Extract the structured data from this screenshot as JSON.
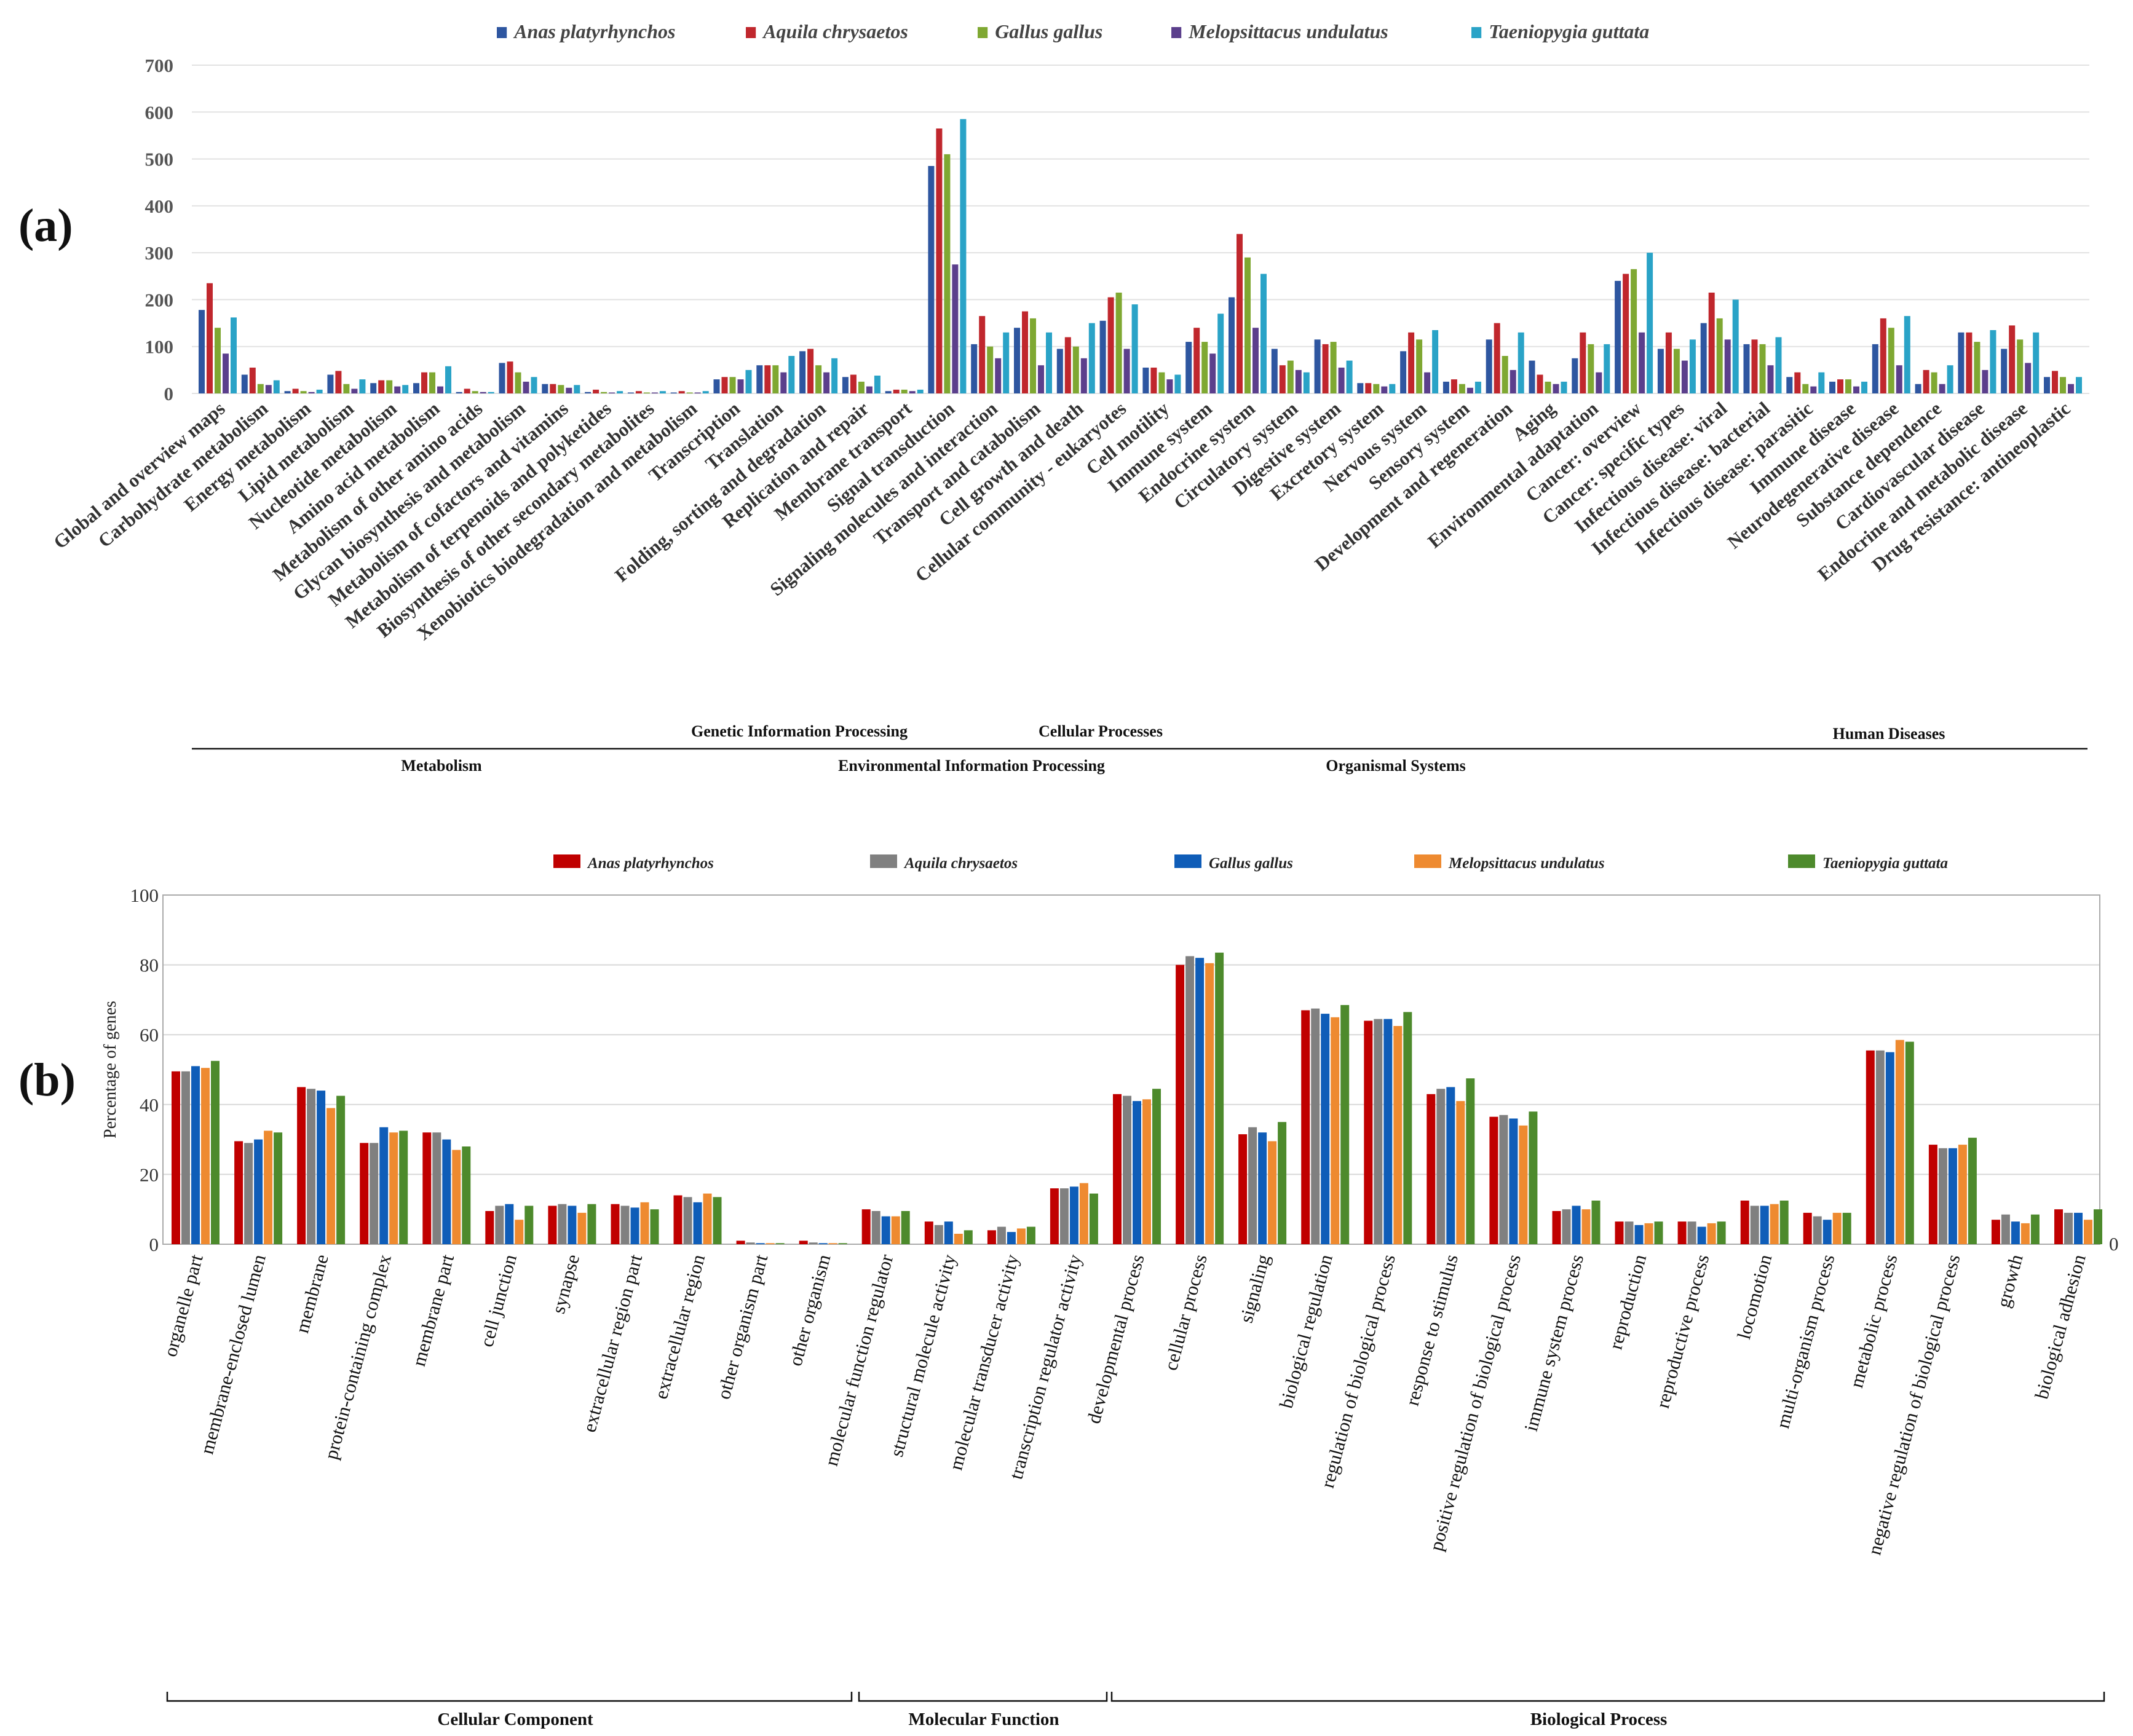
{
  "panels": {
    "a": "(a)",
    "b": "(b)"
  },
  "chart_data": [
    {
      "panel": "(a)",
      "type": "bar",
      "ylim": [
        0,
        700
      ],
      "yticks": [
        0,
        100,
        200,
        300,
        400,
        500,
        600,
        700
      ],
      "grid": true,
      "legend_position": "top",
      "series_colors": [
        "#2e56a0",
        "#c0272d",
        "#7fa832",
        "#5b3f8c",
        "#2aa3c7"
      ],
      "categories": [
        "Global and overview maps",
        "Carbohydrate metabolism",
        "Energy metabolism",
        "Lipid metabolism",
        "Nucleotide metabolism",
        "Amino acid metabolism",
        "Metabolism of other amino acids",
        "Glycan biosynthesis and metabolism",
        "Metabolism of cofactors and vitamins",
        "Metabolism of terpenoids and polyketides",
        "Biosynthesis of other secondary metabolites",
        "Xenobiotics biodegradation and metabolism",
        "Transcription",
        "Translation",
        "Folding, sorting and degradation",
        "Replication and repair",
        "Membrane transport",
        "Signal transduction",
        "Signaling molecules and interaction",
        "Transport and catabolism",
        "Cell growth and death",
        "Cellular community - eukaryotes",
        "Cell motility",
        "Immune system",
        "Endocrine system",
        "Circulatory system",
        "Digestive system",
        "Excretory system",
        "Nervous system",
        "Sensory system",
        "Development and regeneration",
        "Aging",
        "Environmental adaptation",
        "Cancer: overview",
        "Cancer: specific types",
        "Infectious disease: viral",
        "Infectious disease: bacterial",
        "Infectious disease: parasitic",
        "Immune disease",
        "Neurodegenerative disease",
        "Substance dependence",
        "Cardiovascular disease",
        "Endocrine and metabolic disease",
        "Drug resistance: antineoplastic"
      ],
      "series": [
        {
          "name": "Anas platyrhynchos",
          "values": [
            178,
            40,
            5,
            40,
            22,
            22,
            3,
            65,
            20,
            3,
            2,
            2,
            30,
            60,
            90,
            35,
            5,
            485,
            105,
            140,
            95,
            155,
            55,
            110,
            205,
            95,
            115,
            22,
            90,
            25,
            115,
            70,
            75,
            240,
            95,
            150,
            105,
            35,
            25,
            105,
            20,
            130,
            95,
            35
          ]
        },
        {
          "name": "Aquila chrysaetos",
          "values": [
            235,
            55,
            10,
            48,
            28,
            45,
            10,
            68,
            20,
            8,
            5,
            5,
            35,
            60,
            95,
            40,
            8,
            565,
            165,
            175,
            120,
            205,
            55,
            140,
            340,
            60,
            105,
            22,
            130,
            30,
            150,
            40,
            130,
            255,
            130,
            215,
            115,
            45,
            30,
            160,
            50,
            130,
            145,
            48
          ]
        },
        {
          "name": "Gallus gallus",
          "values": [
            140,
            20,
            5,
            20,
            28,
            45,
            5,
            45,
            18,
            3,
            2,
            2,
            35,
            60,
            60,
            25,
            8,
            510,
            100,
            160,
            100,
            215,
            45,
            110,
            290,
            70,
            110,
            20,
            115,
            20,
            80,
            25,
            105,
            265,
            95,
            160,
            105,
            20,
            30,
            140,
            45,
            110,
            115,
            35
          ]
        },
        {
          "name": "Melopsittacus undulatus",
          "values": [
            85,
            18,
            3,
            10,
            15,
            15,
            3,
            25,
            12,
            2,
            2,
            2,
            30,
            45,
            45,
            15,
            5,
            275,
            75,
            60,
            75,
            95,
            30,
            85,
            140,
            50,
            55,
            15,
            45,
            12,
            50,
            20,
            45,
            130,
            70,
            115,
            60,
            15,
            15,
            60,
            20,
            50,
            65,
            20
          ]
        },
        {
          "name": "Taeniopygia guttata",
          "values": [
            162,
            28,
            8,
            30,
            18,
            58,
            3,
            35,
            18,
            5,
            5,
            5,
            50,
            80,
            75,
            38,
            8,
            585,
            130,
            130,
            150,
            190,
            40,
            170,
            255,
            45,
            70,
            20,
            135,
            25,
            130,
            25,
            105,
            300,
            115,
            200,
            120,
            45,
            25,
            165,
            60,
            135,
            130,
            35
          ]
        }
      ],
      "group_labels": {
        "Metabolism": "Metabolism",
        "Genetic Information Processing": "Genetic Information Processing",
        "Environmental Information Processing": "Environmental Information Processing",
        "Cellular Processes": "Cellular Processes",
        "Organismal Systems": "Organismal Systems",
        "Human Diseases": "Human Diseases"
      },
      "groups": [
        {
          "name": "Metabolism",
          "from": 0,
          "to": 11
        },
        {
          "name": "Genetic Information Processing",
          "from": 12,
          "to": 15
        },
        {
          "name": "Environmental Information Processing",
          "from": 16,
          "to": 18
        },
        {
          "name": "Cellular Processes",
          "from": 19,
          "to": 22
        },
        {
          "name": "Organismal Systems",
          "from": 23,
          "to": 32
        },
        {
          "name": "Human Diseases",
          "from": 33,
          "to": 43
        }
      ]
    },
    {
      "panel": "(b)",
      "type": "bar",
      "ylabel": "Percentage of genes",
      "ylim": [
        0,
        100
      ],
      "yticks": [
        0,
        20,
        40,
        60,
        80,
        100
      ],
      "right_axis_tick": "0",
      "grid": true,
      "legend_position": "top",
      "series_colors": [
        "#c00000",
        "#808080",
        "#0f5db8",
        "#ee8a30",
        "#4d8a2c"
      ],
      "categories": [
        "organelle part",
        "membrane-enclosed lumen",
        "membrane",
        "protein-containing complex",
        "membrane part",
        "cell junction",
        "synapse",
        "extracellular region part",
        "extracellular region",
        "other organism part",
        "other organism",
        "molecular function regulator",
        "structural molecule activity",
        "molecular transducer activity",
        "transcription regulator activity",
        "developmental process",
        "cellular process",
        "signaling",
        "biological regulation",
        "regulation of biological process",
        "response to stimulus",
        "positive regulation of biological process",
        "immune system process",
        "reproduction",
        "reproductive process",
        "locomotion",
        "multi-organism process",
        "metabolic process",
        "negative regulation of biological process",
        "growth",
        "biological adhesion"
      ],
      "series": [
        {
          "name": "Anas platyrhynchos",
          "values": [
            49.5,
            29.5,
            45,
            29,
            32,
            9.5,
            11,
            11.5,
            14,
            1,
            1,
            10,
            6.5,
            4,
            16,
            43,
            80,
            31.5,
            67,
            64,
            43,
            36.5,
            9.5,
            6.5,
            6.5,
            12.5,
            9,
            55.5,
            28.5,
            7,
            10
          ]
        },
        {
          "name": "Aquila chrysaetos",
          "values": [
            49.5,
            29,
            44.5,
            29,
            32,
            11,
            11.5,
            11,
            13.5,
            0.5,
            0.5,
            9.5,
            5.5,
            5,
            16,
            42.5,
            82.5,
            33.5,
            67.5,
            64.5,
            44.5,
            37,
            10,
            6.5,
            6.5,
            11,
            8,
            55.5,
            27.5,
            8.5,
            9
          ]
        },
        {
          "name": "Gallus gallus",
          "values": [
            51,
            30,
            44,
            33.5,
            30,
            11.5,
            11,
            10.5,
            12,
            0.3,
            0.3,
            8,
            6.5,
            3.5,
            16.5,
            41,
            82,
            32,
            66,
            64.5,
            45,
            36,
            11,
            5.5,
            5,
            11,
            7,
            55,
            27.5,
            6.5,
            9
          ]
        },
        {
          "name": "Melopsittacus undulatus",
          "values": [
            50.5,
            32.5,
            39,
            32,
            27,
            7,
            9,
            12,
            14.5,
            0.3,
            0.3,
            8,
            3,
            4.5,
            17.5,
            41.5,
            80.5,
            29.5,
            65,
            62.5,
            41,
            34,
            10,
            6,
            6,
            11.5,
            9,
            58.5,
            28.5,
            6,
            7
          ]
        },
        {
          "name": "Taeniopygia guttata",
          "values": [
            52.5,
            32,
            42.5,
            32.5,
            28,
            11,
            11.5,
            10,
            13.5,
            0.3,
            0.3,
            9.5,
            4,
            5,
            14.5,
            44.5,
            83.5,
            35,
            68.5,
            66.5,
            47.5,
            38,
            12.5,
            6.5,
            6.5,
            12.5,
            9,
            58,
            30.5,
            8.5,
            10
          ]
        }
      ],
      "group_labels": {
        "Cellular Component": "Cellular Component",
        "Molecular Function": "Molecular Function",
        "Biological Process": "Biological Process"
      },
      "groups": [
        {
          "name": "Cellular Component",
          "from": 0,
          "to": 10
        },
        {
          "name": "Molecular Function",
          "from": 11,
          "to": 14
        },
        {
          "name": "Biological Process",
          "from": 15,
          "to": 30
        }
      ]
    }
  ]
}
